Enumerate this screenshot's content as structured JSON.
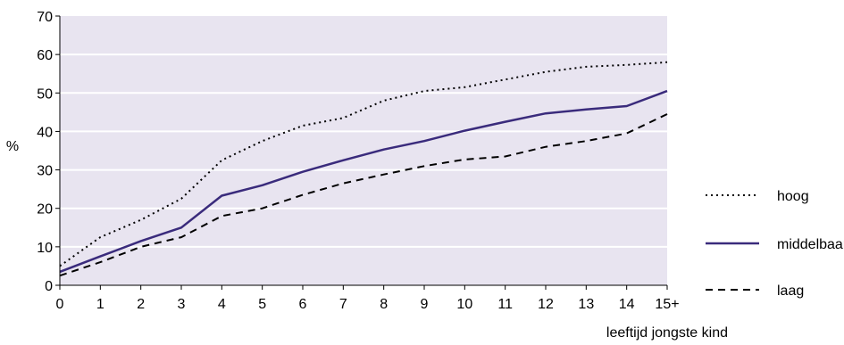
{
  "chart_data": {
    "type": "line",
    "title": "",
    "xlabel": "leeftijd jongste kind",
    "ylabel": "%",
    "categories": [
      "0",
      "1",
      "2",
      "3",
      "4",
      "5",
      "6",
      "7",
      "8",
      "9",
      "10",
      "11",
      "12",
      "13",
      "14",
      "15+"
    ],
    "ylim": [
      0,
      70
    ],
    "yticks": [
      "0",
      "10",
      "20",
      "30",
      "40",
      "50",
      "60",
      "70"
    ],
    "grid": "horizontal",
    "legend_position": "right",
    "series": [
      {
        "name": "hoog",
        "style": "dotted",
        "color": "#000000",
        "values": [
          5,
          12.5,
          17,
          22.5,
          32.5,
          37.5,
          41.5,
          43.5,
          48,
          50.5,
          51.5,
          53.5,
          55.5,
          56.8,
          57.3,
          58
        ]
      },
      {
        "name": "middelbaar",
        "style": "solid",
        "color": "#3a2b7c",
        "values": [
          3.5,
          7.5,
          11.5,
          15,
          23.3,
          26,
          29.5,
          32.5,
          35.3,
          37.5,
          40.2,
          42.5,
          44.7,
          45.7,
          46.6,
          50.5
        ]
      },
      {
        "name": "laag",
        "style": "dashed",
        "color": "#000000",
        "values": [
          2.5,
          6,
          10,
          12.5,
          18,
          20,
          23.5,
          26.5,
          28.8,
          31,
          32.7,
          33.5,
          36,
          37.5,
          39.5,
          44.5
        ]
      }
    ],
    "background_color": "#e8e4f0",
    "grid_color": "#ffffff"
  }
}
